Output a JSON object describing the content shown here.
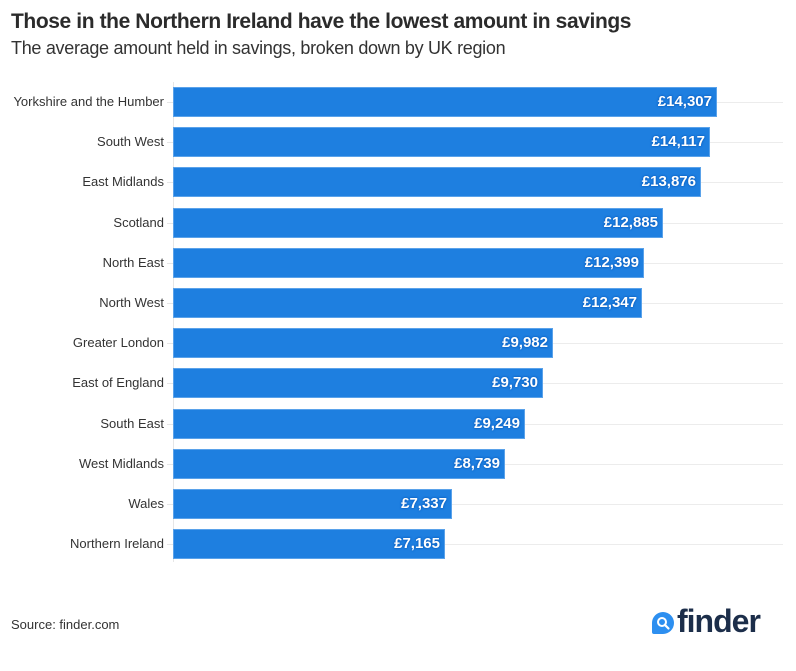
{
  "header": {
    "title": "Those in the Northern Ireland have the lowest amount in savings",
    "subtitle": "The average amount held in savings, broken down by UK region"
  },
  "footer": {
    "source": "Source: finder.com",
    "logo_text": "finder",
    "logo_icon": "search-icon"
  },
  "colors": {
    "bar": "#1e7fe0",
    "title": "#2b2b2b",
    "logo_text": "#1c2e4a",
    "logo_badge": "#2d8ff0"
  },
  "rows": [
    {
      "label": "Yorkshire and the Humber",
      "value_label": "£14,307",
      "value": 14307
    },
    {
      "label": "South West",
      "value_label": "£14,117",
      "value": 14117
    },
    {
      "label": "East Midlands",
      "value_label": "£13,876",
      "value": 13876
    },
    {
      "label": "Scotland",
      "value_label": "£12,885",
      "value": 12885
    },
    {
      "label": "North East",
      "value_label": "£12,399",
      "value": 12399
    },
    {
      "label": "North West",
      "value_label": "£12,347",
      "value": 12347
    },
    {
      "label": "Greater London",
      "value_label": "£9,982",
      "value": 9982
    },
    {
      "label": "East of England",
      "value_label": "£9,730",
      "value": 9730
    },
    {
      "label": "South East",
      "value_label": "£9,249",
      "value": 9249
    },
    {
      "label": "West Midlands",
      "value_label": "£8,739",
      "value": 8739
    },
    {
      "label": "Wales",
      "value_label": "£7,337",
      "value": 7337
    },
    {
      "label": "Northern Ireland",
      "value_label": "£7,165",
      "value": 7165
    }
  ],
  "chart_data": {
    "type": "bar",
    "orientation": "horizontal",
    "title": "Those in the Northern Ireland have the lowest amount in savings",
    "subtitle": "The average amount held in savings, broken down by UK region",
    "categories": [
      "Yorkshire and the Humber",
      "South West",
      "East Midlands",
      "Scotland",
      "North East",
      "North West",
      "Greater London",
      "East of England",
      "South East",
      "West Midlands",
      "Wales",
      "Northern Ireland"
    ],
    "values": [
      14307,
      14117,
      13876,
      12885,
      12399,
      12347,
      9982,
      9730,
      9249,
      8739,
      7337,
      7165
    ],
    "data_labels": [
      "£14,307",
      "£14,117",
      "£13,876",
      "£12,885",
      "£12,399",
      "£12,347",
      "£9,982",
      "£9,730",
      "£9,249",
      "£8,739",
      "£7,337",
      "£7,165"
    ],
    "xlabel": "",
    "ylabel": "",
    "unit": "GBP",
    "grid": true,
    "legend": null,
    "source": "Source: finder.com"
  }
}
